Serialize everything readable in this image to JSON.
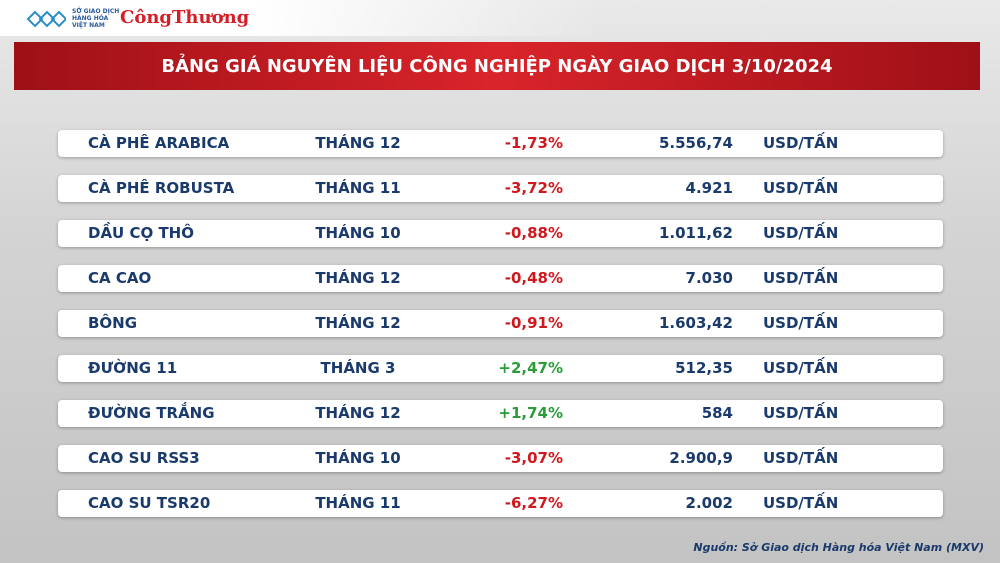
{
  "header": {
    "logo_lines": [
      "SỞ GIAO DỊCH",
      "HÀNG HÓA",
      "VIỆT NAM"
    ],
    "brand": "CôngThương",
    "title": "BẢNG GIÁ NGUYÊN LIỆU CÔNG NGHIỆP NGÀY GIAO DỊCH 3/10/2024"
  },
  "table": {
    "rows": [
      [
        "CÀ PHÊ ARABICA",
        "THÁNG 12",
        "-1,73%",
        "5.556,74",
        "USD/TẤN"
      ],
      [
        "CÀ PHÊ ROBUSTA",
        "THÁNG 11",
        "-3,72%",
        "4.921",
        "USD/TẤN"
      ],
      [
        "DẦU CỌ THÔ",
        "THÁNG 10",
        "-0,88%",
        "1.011,62",
        "USD/TẤN"
      ],
      [
        "CA CAO",
        "THÁNG 12",
        "-0,48%",
        "7.030",
        "USD/TẤN"
      ],
      [
        "BÔNG",
        "THÁNG 12",
        "-0,91%",
        "1.603,42",
        "USD/TẤN"
      ],
      [
        "ĐƯỜNG 11",
        "THÁNG 3",
        "+2,47%",
        "512,35",
        "USD/TẤN"
      ],
      [
        "ĐƯỜNG TRẮNG",
        "THÁNG 12",
        "+1,74%",
        "584",
        "USD/TẤN"
      ],
      [
        "CAO SU RSS3",
        "THÁNG 10",
        "-3,07%",
        "2.900,9",
        "USD/TẤN"
      ],
      [
        "CAO SU TSR20",
        "THÁNG 11",
        "-6,27%",
        "2.002",
        "USD/TẤN"
      ]
    ]
  },
  "footer": {
    "source": "Nguồn: Sở Giao dịch Hàng hóa Việt Nam (MXV)"
  }
}
